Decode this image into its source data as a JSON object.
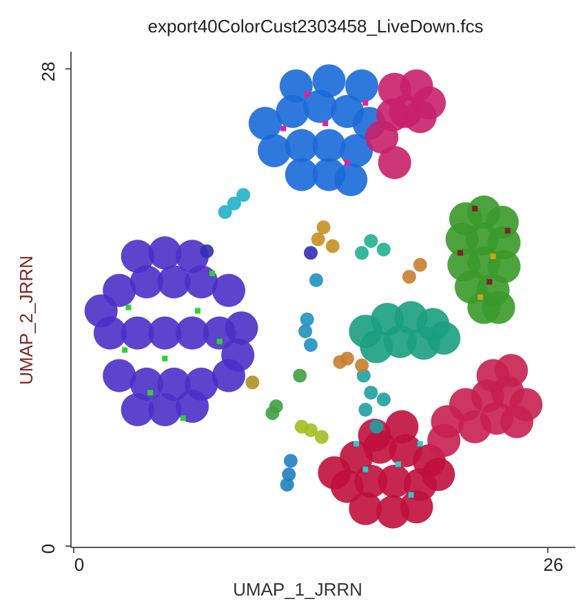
{
  "chart_data": {
    "type": "scatter",
    "title": "export40ColorCust2303458_LiveDown.fcs",
    "x_label": "UMAP_1_JRRN",
    "y_label": "UMAP_2_JRRN",
    "xlim": [
      0,
      26
    ],
    "ylim": [
      0,
      28
    ],
    "xticks": [
      0,
      26
    ],
    "yticks": [
      0,
      28
    ],
    "series": [
      {
        "color": "#4a30c8",
        "x": [
          2.0,
          3.5,
          5.0,
          6.5,
          8.0,
          9.2,
          2.5,
          4.0,
          5.5,
          7.0,
          8.5,
          3.5,
          5.0,
          6.5,
          2.5,
          4.0,
          5.5,
          7.0,
          8.5,
          3.5,
          5.0,
          6.5,
          1.5,
          9.0
        ],
        "values": [
          12.5,
          12.5,
          12.5,
          12.5,
          12.5,
          12.8,
          15.0,
          15.5,
          15.5,
          15.5,
          15.0,
          17.0,
          17.2,
          17.0,
          10.0,
          9.5,
          9.5,
          9.5,
          10.0,
          8.0,
          8.0,
          8.2,
          13.8,
          11.2
        ]
      },
      {
        "color": "#1a6ad8",
        "x": [
          10.5,
          12.0,
          13.5,
          15.0,
          16.2,
          11.0,
          12.5,
          14.0,
          15.5,
          12.5,
          14.0,
          15.2,
          12.2,
          14.0,
          15.8
        ],
        "values": [
          24.8,
          25.5,
          25.8,
          25.5,
          24.8,
          23.2,
          23.5,
          23.5,
          23.2,
          21.8,
          21.8,
          21.5,
          27.0,
          27.3,
          27.0
        ]
      },
      {
        "color": "#c8206a",
        "x": [
          17.6,
          18.8,
          19.5,
          18.2,
          17.5,
          19.0,
          16.9,
          17.6
        ],
        "values": [
          26.8,
          27.0,
          26.0,
          25.5,
          25.3,
          25.2,
          24.0,
          22.5
        ]
      },
      {
        "color": "#3a9a2a",
        "x": [
          21.5,
          22.5,
          23.5,
          21.3,
          22.4,
          23.6,
          21.4,
          22.5,
          23.6,
          21.8,
          23.0,
          22.5,
          23.3
        ],
        "values": [
          19.2,
          19.6,
          19.0,
          18.0,
          18.0,
          17.8,
          16.5,
          16.6,
          16.4,
          15.2,
          15.0,
          14.0,
          14.0
        ]
      },
      {
        "color": "#1a9e80",
        "x": [
          16.0,
          17.2,
          18.5,
          19.7,
          16.6,
          17.9,
          19.2,
          20.3
        ],
        "values": [
          12.6,
          13.3,
          13.4,
          13.0,
          11.7,
          12.0,
          11.9,
          12.2
        ]
      },
      {
        "color": "#c0103c",
        "x": [
          14.3,
          15.5,
          16.8,
          18.2,
          19.5,
          15.0,
          16.3,
          17.6,
          19.0,
          20.0,
          16.0,
          17.5,
          18.8,
          16.5,
          18.0
        ],
        "values": [
          4.3,
          5.2,
          5.8,
          5.6,
          5.0,
          3.5,
          3.8,
          3.8,
          3.6,
          4.2,
          2.2,
          2.0,
          2.3,
          6.5,
          7.0
        ]
      },
      {
        "color": "#c82050",
        "x": [
          20.5,
          21.5,
          22.7,
          23.8,
          24.8,
          22.0,
          23.2,
          24.3,
          23.0,
          24.0,
          20.3
        ],
        "values": [
          7.3,
          8.3,
          8.8,
          9.0,
          8.3,
          7.0,
          7.5,
          7.3,
          10.0,
          10.3,
          6.2
        ]
      },
      {
        "color": "#1fa0a0",
        "x": [
          15.9,
          16.3,
          16.0,
          16.6,
          17.0
        ],
        "values": [
          10.0,
          9.0,
          8.0,
          7.0,
          8.6
        ]
      },
      {
        "color": "#20b0c8",
        "x": [
          8.8,
          8.3,
          9.3
        ],
        "values": [
          20.1,
          19.6,
          20.6
        ]
      },
      {
        "color": "#c89020",
        "x": [
          13.7,
          13.4,
          14.2
        ],
        "values": [
          18.7,
          18.0,
          17.6
        ]
      },
      {
        "color": "#3030b0",
        "x": [
          13.0,
          7.3
        ],
        "values": [
          17.2,
          17.3
        ]
      },
      {
        "color": "#20b090",
        "x": [
          16.3,
          17.0,
          15.8
        ],
        "values": [
          17.9,
          17.4,
          17.2
        ]
      },
      {
        "color": "#2090c0",
        "x": [
          12.8,
          12.7,
          13.0,
          13.3
        ],
        "values": [
          13.3,
          12.6,
          11.8,
          15.6
        ]
      },
      {
        "color": "#c88030",
        "x": [
          15.0,
          15.8,
          14.6,
          19.0,
          18.4
        ],
        "values": [
          11.0,
          10.6,
          10.8,
          16.5,
          15.8
        ]
      },
      {
        "color": "#a0c020",
        "x": [
          13.0,
          13.6,
          12.5
        ],
        "values": [
          6.8,
          6.4,
          7.0
        ]
      },
      {
        "color": "#40a040",
        "x": [
          11.1,
          10.9,
          12.4
        ],
        "values": [
          8.2,
          7.8,
          10.0
        ]
      },
      {
        "color": "#2080c0",
        "x": [
          11.8,
          11.9,
          11.7
        ],
        "values": [
          4.2,
          5.0,
          3.6
        ]
      },
      {
        "color": "#b09020",
        "x": [
          9.8
        ],
        "values": [
          9.6
        ]
      },
      {
        "color": "#30d030",
        "x": [
          3.0,
          5.0,
          6.8,
          4.2,
          7.6,
          2.8,
          6.0,
          8.0
        ],
        "values": [
          14.0,
          11.0,
          13.8,
          9.0,
          16.0,
          11.5,
          7.5,
          12.0
        ]
      },
      {
        "color": "#e020a0",
        "x": [
          11.5,
          13.8,
          15.0,
          12.8,
          16.0
        ],
        "values": [
          24.5,
          24.8,
          22.5,
          26.5,
          26.0
        ]
      },
      {
        "color": "#20d0d0",
        "x": [
          16.0,
          17.8,
          15.5,
          18.5,
          19.0
        ],
        "values": [
          4.5,
          4.8,
          6.0,
          3.0,
          6.0
        ]
      },
      {
        "color": "#8a1a30",
        "x": [
          21.2,
          22.8,
          23.8,
          22.0
        ],
        "values": [
          17.2,
          15.5,
          18.5,
          19.8
        ]
      },
      {
        "color": "#d0a020",
        "x": [
          23.0,
          22.3
        ],
        "values": [
          17.0,
          14.6
        ]
      }
    ]
  }
}
